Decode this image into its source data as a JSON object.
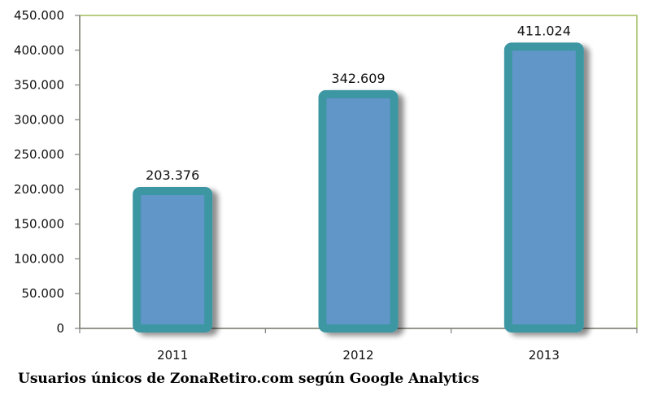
{
  "chart_data": {
    "type": "bar",
    "categories": [
      "2011",
      "2012",
      "2013"
    ],
    "values": [
      203376,
      342609,
      411024
    ],
    "value_labels": [
      "203.376",
      "342.609",
      "411.024"
    ],
    "title": "Usuarios únicos de ZonaRetiro.com según Google Analytics",
    "xlabel": "",
    "ylabel": "",
    "ylim": [
      0,
      450000
    ],
    "yticks": [
      0,
      50000,
      100000,
      150000,
      200000,
      250000,
      300000,
      350000,
      400000,
      450000
    ],
    "ytick_labels": [
      "0",
      "50.000",
      "100.000",
      "150.000",
      "200.000",
      "250.000",
      "300.000",
      "350.000",
      "400.000",
      "450.000"
    ],
    "grid": false,
    "legend": "none",
    "colors": {
      "bar_fill": "#6096c8",
      "bar_border": "#3d97a3",
      "plot_border": "#9fbb5a",
      "axis": "#808080"
    }
  }
}
